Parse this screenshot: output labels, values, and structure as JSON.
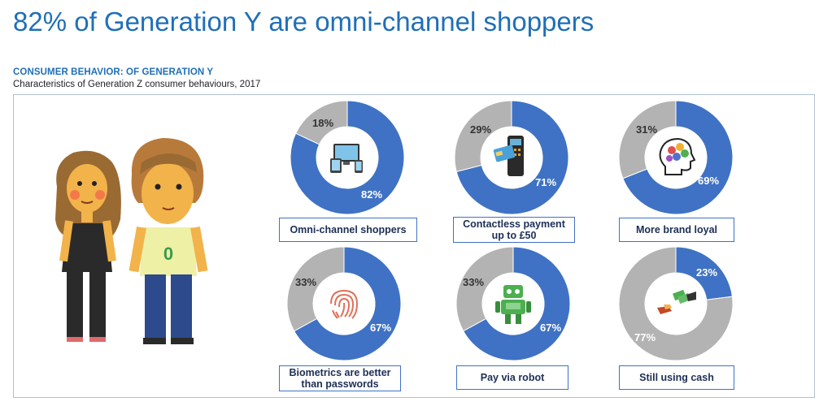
{
  "header": {
    "title": "82% of Generation Y are omni-channel shoppers",
    "subhead": "CONSUMER BEHAVIOR: OF GENERATION Y",
    "subtitle": "Characteristics of Generation Z consumer behaviours, 2017"
  },
  "colors": {
    "blue": "#3f72c4",
    "grey": "#b3b3b3",
    "title": "#1f6fb8"
  },
  "illustration": {
    "shirt_letter": "0"
  },
  "chart_data": [
    {
      "type": "pie",
      "label": "Omni-channel shoppers",
      "values": [
        82,
        18
      ],
      "value_labels": [
        "82%",
        "18%"
      ],
      "icon": "devices-icon"
    },
    {
      "type": "pie",
      "label": "Contactless payment up to £50",
      "values": [
        71,
        29
      ],
      "value_labels": [
        "71%",
        "29%"
      ],
      "icon": "card-terminal-icon"
    },
    {
      "type": "pie",
      "label": "More brand loyal",
      "values": [
        69,
        31
      ],
      "value_labels": [
        "69%",
        "31%"
      ],
      "icon": "head-brain-icon"
    },
    {
      "type": "pie",
      "label": "Biometrics are better than passwords",
      "values": [
        67,
        33
      ],
      "value_labels": [
        "67%",
        "33%"
      ],
      "icon": "fingerprint-icon"
    },
    {
      "type": "pie",
      "label": "Pay via robot",
      "values": [
        67,
        33
      ],
      "value_labels": [
        "67%",
        "33%"
      ],
      "icon": "robot-icon"
    },
    {
      "type": "pie",
      "label": "Still using cash",
      "values": [
        23,
        77
      ],
      "value_labels": [
        "23%",
        "77%"
      ],
      "icon": "cash-hands-icon"
    }
  ]
}
